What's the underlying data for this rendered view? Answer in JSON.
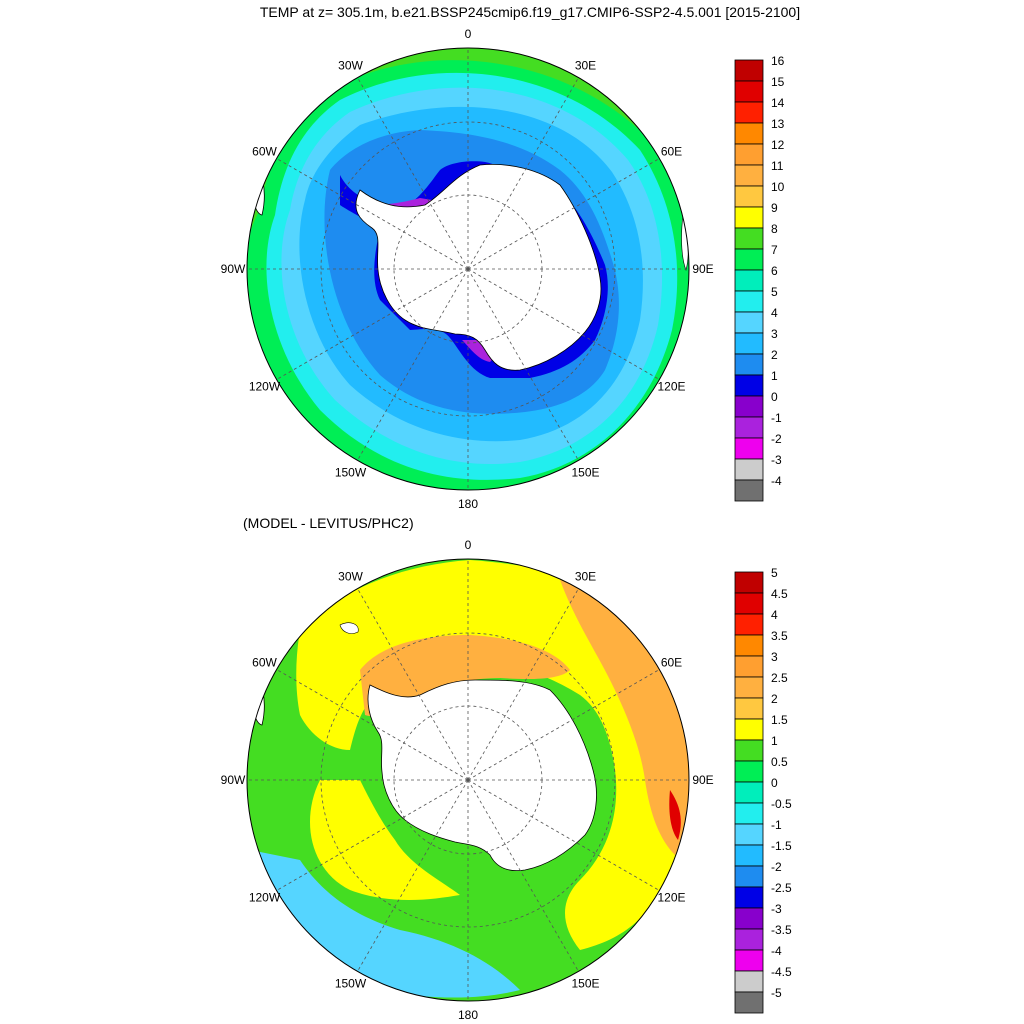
{
  "top_map": {
    "title": "TEMP at z= 305.1m, b.e21.BSSP245cmip6.f19_g17.CMIP6-SSP2-4.5.001 [2015-2100]",
    "lon_labels": [
      "0",
      "30E",
      "60E",
      "90E",
      "120E",
      "150E",
      "180",
      "150W",
      "120W",
      "90W",
      "60W",
      "30W"
    ],
    "colorbar": {
      "labels": [
        "16",
        "15",
        "14",
        "13",
        "12",
        "11",
        "10",
        "9",
        "8",
        "7",
        "6",
        "5",
        "4",
        "3",
        "2",
        "1",
        "0",
        "-1",
        "-2",
        "-3",
        "-4"
      ],
      "colors": [
        "#c00000",
        "#e00000",
        "#ff2000",
        "#ff8800",
        "#ff9f30",
        "#ffb040",
        "#ffc840",
        "#ffff00",
        "#44dd22",
        "#00ee55",
        "#00eebb",
        "#22eeee",
        "#55d5ff",
        "#22bbff",
        "#1e8cf0",
        "#0000e6",
        "#8800cc",
        "#aa22dd",
        "#ee00ee",
        "#cccccc",
        "#707070"
      ]
    }
  },
  "bottom_map": {
    "title": "(MODEL - LEVITUS/PHC2)",
    "lon_labels": [
      "0",
      "30E",
      "60E",
      "90E",
      "120E",
      "150E",
      "180",
      "150W",
      "120W",
      "90W",
      "60W",
      "30W"
    ],
    "colorbar": {
      "labels": [
        "5",
        "4.5",
        "4",
        "3.5",
        "3",
        "2.5",
        "2",
        "1.5",
        "1",
        "0.5",
        "0",
        "-0.5",
        "-1",
        "-1.5",
        "-2",
        "-2.5",
        "-3",
        "-3.5",
        "-4",
        "-4.5",
        "-5"
      ],
      "colors": [
        "#c00000",
        "#e00000",
        "#ff2000",
        "#ff8800",
        "#ff9f30",
        "#ffb040",
        "#ffc840",
        "#ffff00",
        "#44dd22",
        "#00ee55",
        "#00eebb",
        "#22eeee",
        "#55d5ff",
        "#22bbff",
        "#1e8cf0",
        "#0000e6",
        "#8800cc",
        "#aa22dd",
        "#ee00ee",
        "#cccccc",
        "#707070"
      ]
    }
  }
}
